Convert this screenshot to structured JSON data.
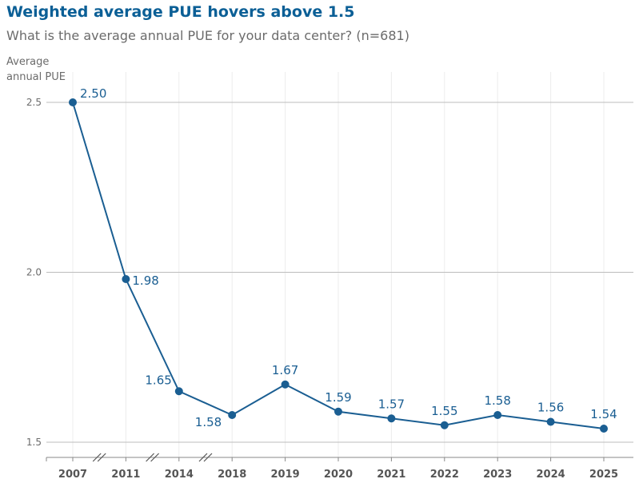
{
  "chart_data": {
    "type": "line",
    "title": "Weighted average PUE hovers above 1.5",
    "subtitle": "What is the average annual PUE for your data center? (n=681)",
    "ylabel": "Average annual PUE",
    "xlabel": "",
    "categories": [
      "2007",
      "2011",
      "2014",
      "2018",
      "2019",
      "2020",
      "2021",
      "2022",
      "2023",
      "2024",
      "2025"
    ],
    "values": [
      2.5,
      1.98,
      1.65,
      1.58,
      1.67,
      1.59,
      1.57,
      1.55,
      1.58,
      1.56,
      1.54
    ],
    "value_labels": [
      "2.50",
      "1.98",
      "1.65",
      "1.58",
      "1.67",
      "1.59",
      "1.57",
      "1.55",
      "1.58",
      "1.56",
      "1.54"
    ],
    "y_ticks": [
      "1.5",
      "2.0",
      "2.5"
    ],
    "ylim": [
      1.5,
      2.5
    ],
    "axis_breaks_after": [
      "2007",
      "2011",
      "2014"
    ],
    "colors": {
      "line": "#1a5e92",
      "title": "#0b5f96",
      "grid": "#bdbdbd"
    }
  }
}
